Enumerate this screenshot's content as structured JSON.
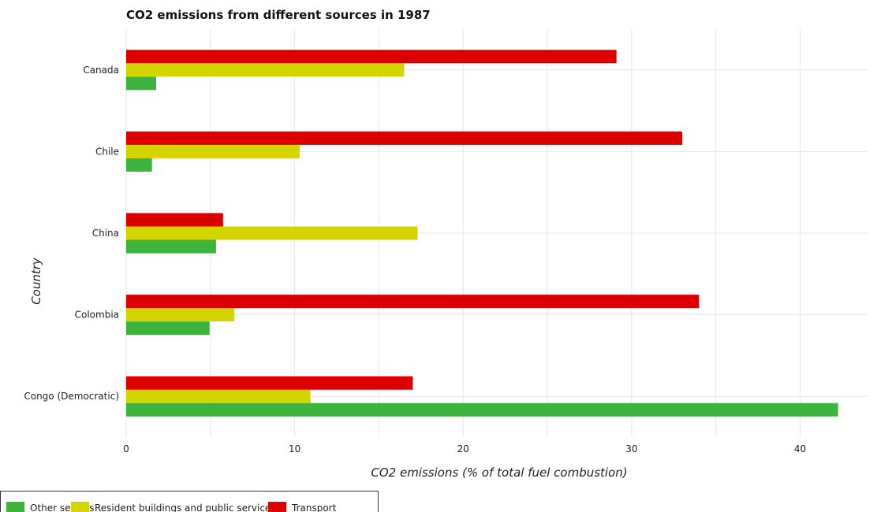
{
  "chart_data": {
    "type": "bar",
    "orientation": "horizontal",
    "title": "CO2 emissions from different sources in 1987",
    "xlabel": "CO2 emissions (% of total fuel combustion)",
    "ylabel": "Country",
    "xlim": [
      0,
      44
    ],
    "xticks": [
      0,
      10,
      20,
      30,
      40
    ],
    "categories": [
      "Canada",
      "Chile",
      "China",
      "Colombia",
      "Congo (Democratic)"
    ],
    "series": [
      {
        "name": "Other sectors",
        "color": "#3cb33c",
        "values": [
          1.78,
          1.53,
          5.33,
          4.95,
          42.25
        ]
      },
      {
        "name": "Resident buildings and public services",
        "color": "#d4d400",
        "values": [
          16.5,
          10.3,
          17.3,
          6.42,
          10.94
        ]
      },
      {
        "name": "Transport",
        "color": "#dd0000",
        "values": [
          29.1,
          33.0,
          5.75,
          34.0,
          17.01
        ]
      }
    ],
    "grid": true,
    "legend_position": "bottom-left"
  }
}
